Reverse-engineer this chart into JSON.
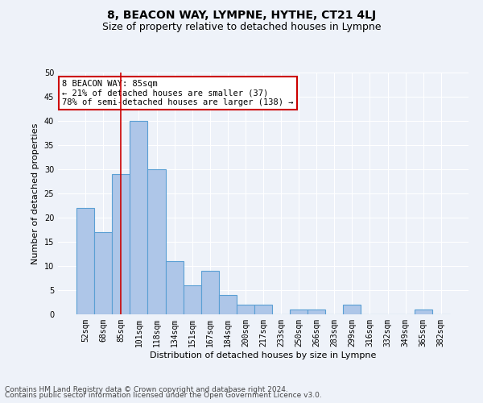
{
  "title": "8, BEACON WAY, LYMPNE, HYTHE, CT21 4LJ",
  "subtitle": "Size of property relative to detached houses in Lympne",
  "xlabel": "Distribution of detached houses by size in Lympne",
  "ylabel": "Number of detached properties",
  "categories": [
    "52sqm",
    "68sqm",
    "85sqm",
    "101sqm",
    "118sqm",
    "134sqm",
    "151sqm",
    "167sqm",
    "184sqm",
    "200sqm",
    "217sqm",
    "233sqm",
    "250sqm",
    "266sqm",
    "283sqm",
    "299sqm",
    "316sqm",
    "332sqm",
    "349sqm",
    "365sqm",
    "382sqm"
  ],
  "values": [
    22,
    17,
    29,
    40,
    30,
    11,
    6,
    9,
    4,
    2,
    2,
    0,
    1,
    1,
    0,
    2,
    0,
    0,
    0,
    1,
    0
  ],
  "bar_color": "#aec6e8",
  "bar_edge_color": "#5a9fd4",
  "marker_index": 2,
  "marker_color": "#cc0000",
  "annotation_text": "8 BEACON WAY: 85sqm\n← 21% of detached houses are smaller (37)\n78% of semi-detached houses are larger (138) →",
  "annotation_box_color": "#ffffff",
  "annotation_box_edge_color": "#cc0000",
  "ylim": [
    0,
    50
  ],
  "yticks": [
    0,
    5,
    10,
    15,
    20,
    25,
    30,
    35,
    40,
    45,
    50
  ],
  "footer_line1": "Contains HM Land Registry data © Crown copyright and database right 2024.",
  "footer_line2": "Contains public sector information licensed under the Open Government Licence v3.0.",
  "background_color": "#eef2f9",
  "plot_background_color": "#eef2f9",
  "grid_color": "#ffffff",
  "title_fontsize": 10,
  "subtitle_fontsize": 9,
  "axis_label_fontsize": 8,
  "tick_fontsize": 7,
  "annotation_fontsize": 7.5,
  "footer_fontsize": 6.5
}
